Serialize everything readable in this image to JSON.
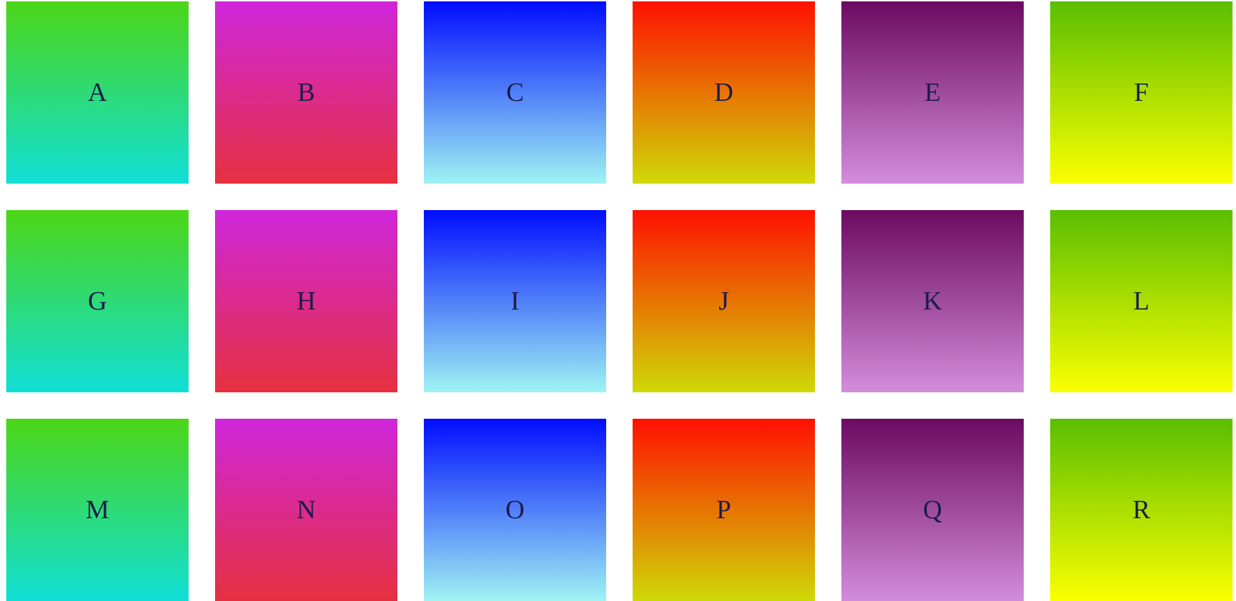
{
  "tiles": [
    {
      "label": "A",
      "from": "#4cd616",
      "to": "#10dfd6"
    },
    {
      "label": "B",
      "from": "#cf26db",
      "to": "#e6303f"
    },
    {
      "label": "C",
      "from": "#000cff",
      "to": "#a0f3f3"
    },
    {
      "label": "D",
      "from": "#ff1000",
      "to": "#cfd906"
    },
    {
      "label": "E",
      "from": "#6c0a61",
      "to": "#d38cdb"
    },
    {
      "label": "F",
      "from": "#5abe02",
      "to": "#fbff00"
    },
    {
      "label": "G",
      "from": "#4cd616",
      "to": "#10dfd6"
    },
    {
      "label": "H",
      "from": "#cf26db",
      "to": "#e6303f"
    },
    {
      "label": "I",
      "from": "#000cff",
      "to": "#a0f3f3"
    },
    {
      "label": "J",
      "from": "#ff1000",
      "to": "#cfd906"
    },
    {
      "label": "K",
      "from": "#6c0a61",
      "to": "#d38cdb"
    },
    {
      "label": "L",
      "from": "#5abe02",
      "to": "#fbff00"
    },
    {
      "label": "M",
      "from": "#4cd616",
      "to": "#10dfd6"
    },
    {
      "label": "N",
      "from": "#cf26db",
      "to": "#e6303f"
    },
    {
      "label": "O",
      "from": "#000cff",
      "to": "#a0f3f3"
    },
    {
      "label": "P",
      "from": "#ff1000",
      "to": "#cfd906"
    },
    {
      "label": "Q",
      "from": "#6c0a61",
      "to": "#d38cdb"
    },
    {
      "label": "R",
      "from": "#5abe02",
      "to": "#fbff00"
    }
  ]
}
